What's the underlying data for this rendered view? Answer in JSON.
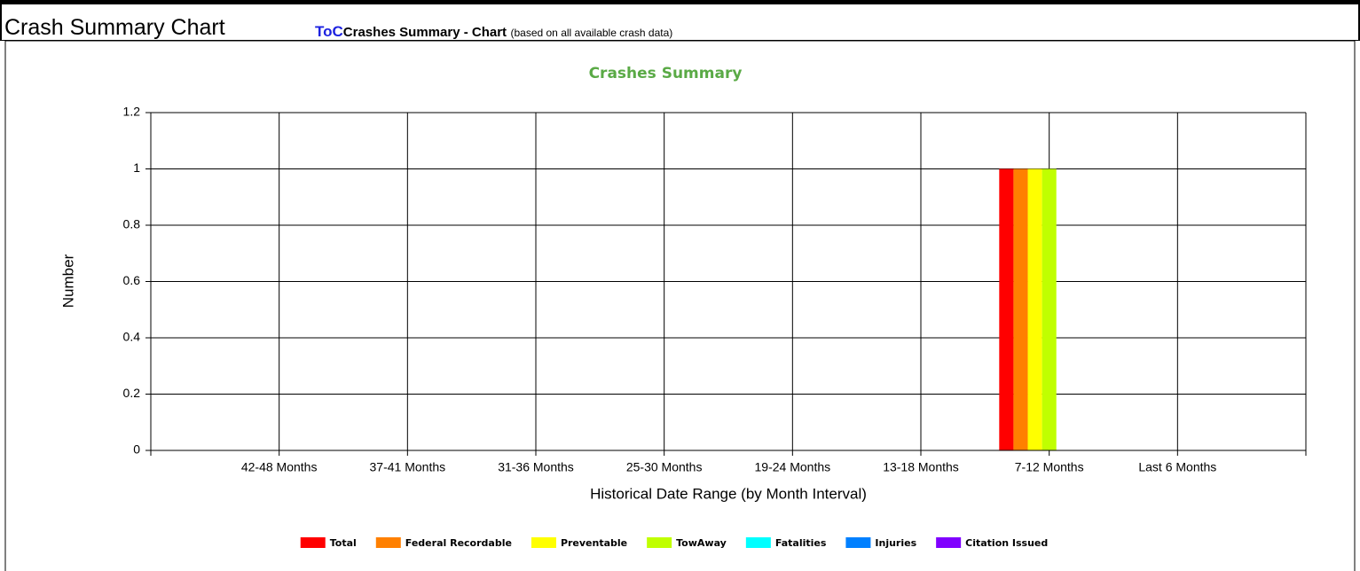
{
  "header": {
    "title": "Crash Summary Chart",
    "link": "ToC",
    "subtitle": "Crashes Summary - Chart",
    "note": "(based on all available crash data)"
  },
  "chart_data": {
    "type": "bar",
    "title": "Crashes Summary",
    "x_label": "Historical Date Range (by Month Interval)",
    "y_label": "Number",
    "categories": [
      "42-48 Months",
      "37-41 Months",
      "31-36 Months",
      "25-30 Months",
      "19-24 Months",
      "13-18 Months",
      "7-12 Months",
      "Last 6 Months"
    ],
    "series": [
      {
        "name": "Total",
        "color": "#ff0000",
        "values": [
          0,
          0,
          0,
          0,
          0,
          0,
          1,
          0
        ]
      },
      {
        "name": "Federal Recordable",
        "color": "#ff8000",
        "values": [
          0,
          0,
          0,
          0,
          0,
          0,
          1,
          0
        ]
      },
      {
        "name": "Preventable",
        "color": "#ffff00",
        "values": [
          0,
          0,
          0,
          0,
          0,
          0,
          1,
          0
        ]
      },
      {
        "name": "TowAway",
        "color": "#c0ff00",
        "values": [
          0,
          0,
          0,
          0,
          0,
          0,
          1,
          0
        ]
      },
      {
        "name": "Fatalities",
        "color": "#00ffff",
        "values": [
          0,
          0,
          0,
          0,
          0,
          0,
          0,
          0
        ]
      },
      {
        "name": "Injuries",
        "color": "#0080ff",
        "values": [
          0,
          0,
          0,
          0,
          0,
          0,
          0,
          0
        ]
      },
      {
        "name": "Citation Issued",
        "color": "#8000ff",
        "values": [
          0,
          0,
          0,
          0,
          0,
          0,
          0,
          0
        ]
      }
    ],
    "ylim": [
      0,
      1.2
    ],
    "yticks": [
      0,
      0.2,
      0.4,
      0.6,
      0.8,
      1,
      1.2
    ],
    "grid": true,
    "legend": "bottom"
  }
}
